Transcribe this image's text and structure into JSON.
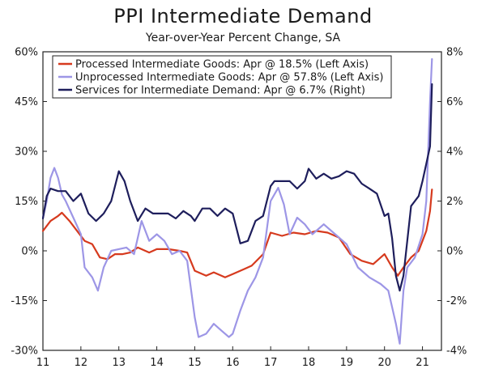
{
  "chart_data": {
    "type": "line",
    "title": "PPI Intermediate Demand",
    "subtitle": "Year-over-Year Percent Change, SA",
    "x_ticks": [
      "11",
      "12",
      "13",
      "14",
      "15",
      "16",
      "17",
      "18",
      "19",
      "20",
      "21"
    ],
    "x_tick_years": [
      2011,
      2012,
      2013,
      2014,
      2015,
      2016,
      2017,
      2018,
      2019,
      2020,
      2021
    ],
    "xlim": [
      2011.0,
      2021.5
    ],
    "y_left": {
      "lim": [
        -30,
        60
      ],
      "ticks": [
        60,
        45,
        30,
        15,
        0,
        -15,
        -30
      ],
      "labels": [
        "60%",
        "45%",
        "30%",
        "15%",
        "0%",
        "-15%",
        "-30%"
      ]
    },
    "y_right": {
      "lim": [
        -4,
        8
      ],
      "ticks": [
        8,
        6,
        4,
        2,
        0,
        -2,
        -4
      ],
      "labels": [
        "8%",
        "6%",
        "4%",
        "2%",
        "0%",
        "-2%",
        "-4%"
      ]
    },
    "series": [
      {
        "name": "Processed Intermediate Goods",
        "legend": "Processed Intermediate Goods: Apr @ 18.5% (Left Axis)",
        "axis": "left",
        "color": "#d63a1e",
        "x": [
          2011.0,
          2011.2,
          2011.4,
          2011.5,
          2011.7,
          2011.9,
          2012.1,
          2012.3,
          2012.5,
          2012.7,
          2012.9,
          2013.1,
          2013.3,
          2013.5,
          2013.8,
          2014.0,
          2014.3,
          2014.6,
          2014.8,
          2015.0,
          2015.3,
          2015.5,
          2015.8,
          2016.0,
          2016.3,
          2016.5,
          2016.8,
          2017.0,
          2017.3,
          2017.6,
          2017.9,
          2018.2,
          2018.5,
          2018.8,
          2019.1,
          2019.4,
          2019.7,
          2020.0,
          2020.2,
          2020.35,
          2020.5,
          2020.7,
          2020.9,
          2021.0,
          2021.1,
          2021.2,
          2021.25
        ],
        "values": [
          6.0,
          9.0,
          10.5,
          11.5,
          9.0,
          6.0,
          3.0,
          2.0,
          -2.0,
          -2.5,
          -1.0,
          -1.0,
          -0.5,
          1.0,
          -0.5,
          0.5,
          0.5,
          0.0,
          -0.5,
          -6.0,
          -7.5,
          -6.5,
          -8.0,
          -7.0,
          -5.5,
          -4.5,
          -1.0,
          5.5,
          4.5,
          5.5,
          5.0,
          6.0,
          5.5,
          4.0,
          -1.0,
          -3.0,
          -4.0,
          -1.0,
          -5.0,
          -7.5,
          -5.0,
          -2.0,
          0.0,
          3.0,
          6.0,
          12.0,
          18.5
        ]
      },
      {
        "name": "Unprocessed Intermediate Goods",
        "legend": "Unprocessed Intermediate Goods: Apr @ 57.8% (Left Axis)",
        "axis": "left",
        "color": "#9d96e6",
        "x": [
          2011.0,
          2011.1,
          2011.2,
          2011.3,
          2011.4,
          2011.5,
          2011.6,
          2011.8,
          2012.0,
          2012.1,
          2012.3,
          2012.45,
          2012.6,
          2012.8,
          2013.0,
          2013.2,
          2013.4,
          2013.6,
          2013.8,
          2014.0,
          2014.2,
          2014.4,
          2014.6,
          2014.8,
          2015.0,
          2015.1,
          2015.3,
          2015.5,
          2015.7,
          2015.9,
          2016.0,
          2016.2,
          2016.4,
          2016.6,
          2016.8,
          2017.0,
          2017.2,
          2017.35,
          2017.5,
          2017.7,
          2017.9,
          2018.1,
          2018.4,
          2018.7,
          2019.0,
          2019.3,
          2019.6,
          2019.9,
          2020.1,
          2020.3,
          2020.4,
          2020.5,
          2020.6,
          2020.8,
          2021.0,
          2021.1,
          2021.2,
          2021.25
        ],
        "values": [
          10.0,
          15.0,
          22.0,
          25.0,
          22.0,
          17.0,
          15.0,
          10.0,
          5.0,
          -5.0,
          -8.0,
          -12.0,
          -5.0,
          0.0,
          0.5,
          1.0,
          -1.0,
          9.0,
          3.0,
          5.0,
          3.0,
          -1.0,
          0.0,
          -3.0,
          -20.0,
          -26.0,
          -25.0,
          -22.0,
          -24.0,
          -26.0,
          -25.0,
          -18.0,
          -12.0,
          -8.0,
          -2.0,
          15.0,
          19.0,
          14.0,
          5.0,
          10.0,
          8.0,
          5.0,
          8.0,
          5.0,
          2.0,
          -5.0,
          -8.0,
          -10.0,
          -12.0,
          -22.0,
          -28.0,
          -12.0,
          -5.0,
          -2.0,
          5.0,
          15.0,
          45.0,
          57.8
        ]
      },
      {
        "name": "Services for Intermediate Demand",
        "legend": "Services for Intermediate Demand: Apr @ 6.7% (Right)",
        "axis": "right",
        "color": "#1e1e5c",
        "x": [
          2011.0,
          2011.1,
          2011.2,
          2011.4,
          2011.6,
          2011.8,
          2012.0,
          2012.2,
          2012.4,
          2012.6,
          2012.8,
          2013.0,
          2013.15,
          2013.3,
          2013.5,
          2013.7,
          2013.9,
          2014.1,
          2014.3,
          2014.5,
          2014.7,
          2014.9,
          2015.0,
          2015.2,
          2015.4,
          2015.6,
          2015.8,
          2016.0,
          2016.2,
          2016.4,
          2016.6,
          2016.8,
          2017.0,
          2017.1,
          2017.3,
          2017.5,
          2017.7,
          2017.9,
          2018.0,
          2018.2,
          2018.4,
          2018.6,
          2018.8,
          2019.0,
          2019.2,
          2019.4,
          2019.6,
          2019.8,
          2020.0,
          2020.1,
          2020.2,
          2020.3,
          2020.4,
          2020.5,
          2020.7,
          2020.9,
          2021.0,
          2021.1,
          2021.2,
          2021.25
        ],
        "values": [
          1.3,
          2.2,
          2.5,
          2.4,
          2.4,
          2.0,
          2.3,
          1.5,
          1.2,
          1.5,
          2.0,
          3.2,
          2.8,
          2.0,
          1.2,
          1.7,
          1.5,
          1.5,
          1.5,
          1.3,
          1.6,
          1.4,
          1.2,
          1.7,
          1.7,
          1.4,
          1.7,
          1.5,
          0.3,
          0.4,
          1.2,
          1.4,
          2.6,
          2.8,
          2.8,
          2.8,
          2.5,
          2.8,
          3.3,
          2.9,
          3.1,
          2.9,
          3.0,
          3.2,
          3.1,
          2.7,
          2.5,
          2.3,
          1.4,
          1.5,
          0.5,
          -1.0,
          -1.6,
          -1.0,
          1.8,
          2.2,
          2.8,
          3.5,
          4.2,
          6.7
        ]
      }
    ]
  }
}
